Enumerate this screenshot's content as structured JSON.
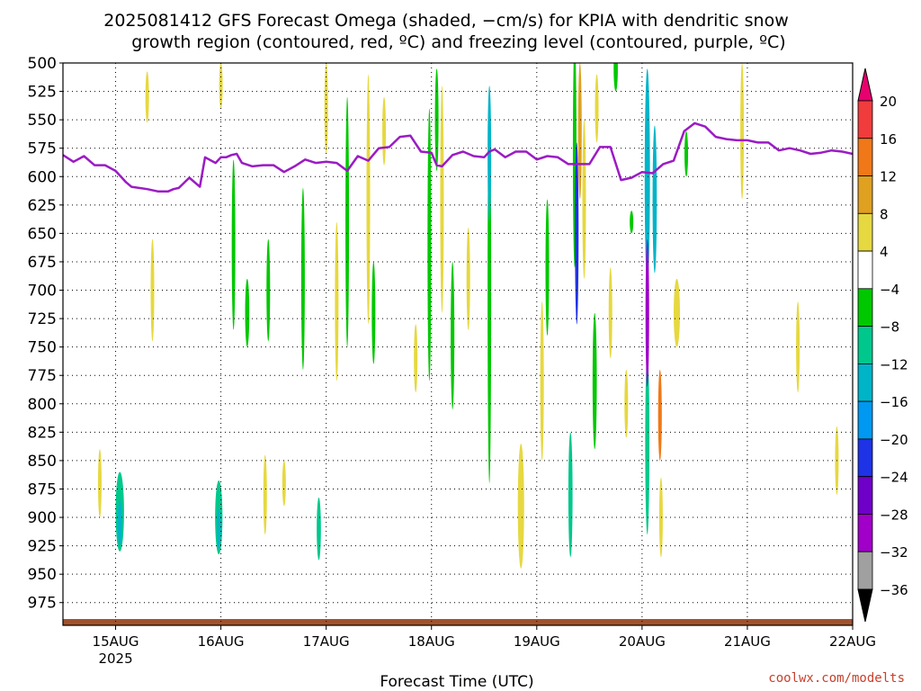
{
  "chart_data": {
    "type": "heatmap",
    "title_line1": "2025081412 GFS Forecast Omega (shaded, −cm/s) for KPIA with dendritic snow",
    "title_line2": "growth region (contoured, red, ºC) and freezing level (contoured, purple, ºC)",
    "xlabel": "Forecast Time (UTC)",
    "ylabel": "",
    "x_ticks": [
      "15AUG",
      "16AUG",
      "17AUG",
      "18AUG",
      "19AUG",
      "20AUG",
      "21AUG",
      "22AUG"
    ],
    "x_year": "2025",
    "y_ticks": [
      500,
      525,
      550,
      575,
      600,
      625,
      650,
      675,
      700,
      725,
      750,
      775,
      800,
      825,
      850,
      875,
      900,
      925,
      950,
      975
    ],
    "xlim_days": [
      14.5,
      22.0
    ],
    "ylim_hpa": [
      500,
      995
    ],
    "grid": "dotted",
    "colorbar": {
      "labels": [
        "20",
        "16",
        "12",
        "8",
        "4",
        "−4",
        "−8",
        "−12",
        "−16",
        "−20",
        "−24",
        "−28",
        "−32",
        "−36"
      ],
      "colors": [
        "#e8006e",
        "#f03c3c",
        "#f07818",
        "#e0a020",
        "#e6d840",
        "#ffffff",
        "#00c800",
        "#00c88c",
        "#00b4c8",
        "#0098f0",
        "#1e32e6",
        "#6e00c8",
        "#a000c8",
        "#a0a0a0",
        "#000000"
      ]
    },
    "colors": {
      "freezing_level": "#9b1bc4",
      "ground": "#a0522d"
    },
    "freezing_level": {
      "x_day": [
        14.5,
        14.6,
        14.7,
        14.8,
        14.9,
        15.0,
        15.1,
        15.15,
        15.3,
        15.4,
        15.5,
        15.55,
        15.6,
        15.7,
        15.8,
        15.85,
        15.95,
        16.0,
        16.05,
        16.1,
        16.15,
        16.2,
        16.3,
        16.4,
        16.5,
        16.6,
        16.7,
        16.8,
        16.9,
        17.0,
        17.1,
        17.2,
        17.3,
        17.4,
        17.5,
        17.6,
        17.7,
        17.8,
        17.9,
        18.0,
        18.05,
        18.1,
        18.2,
        18.3,
        18.4,
        18.5,
        18.55,
        18.6,
        18.7,
        18.8,
        18.9,
        19.0,
        19.1,
        19.2,
        19.3,
        19.4,
        19.5,
        19.6,
        19.7,
        19.8,
        19.9,
        20.0,
        20.1,
        20.2,
        20.3,
        20.4,
        20.5,
        20.6,
        20.7,
        20.8,
        20.9,
        21.0,
        21.1,
        21.2,
        21.3,
        21.4,
        21.5,
        21.6,
        21.7,
        21.8,
        21.9,
        22.0
      ],
      "p_hpa": [
        581,
        587,
        582,
        590,
        590,
        595,
        605,
        609,
        611,
        613,
        613,
        611,
        610,
        601,
        609,
        583,
        588,
        583,
        583,
        581,
        580,
        588,
        591,
        590,
        590,
        596,
        591,
        585,
        588,
        587,
        588,
        595,
        582,
        586,
        575,
        574,
        565,
        564,
        578,
        579,
        590,
        591,
        581,
        578,
        582,
        583,
        578,
        576,
        583,
        578,
        578,
        585,
        582,
        583,
        589,
        589,
        589,
        574,
        574,
        603,
        601,
        596,
        597,
        589,
        586,
        560,
        553,
        556,
        565,
        567,
        568,
        568,
        570,
        570,
        577,
        575,
        577,
        580,
        579,
        577,
        578,
        580
      ]
    },
    "omega_blobs": [
      {
        "x": 15.04,
        "y": 895,
        "w": 0.08,
        "h": 70,
        "v": -9
      },
      {
        "x": 15.04,
        "y": 905,
        "w": 0.04,
        "h": 40,
        "v": -13
      },
      {
        "x": 15.98,
        "y": 900,
        "w": 0.07,
        "h": 65,
        "v": -9
      },
      {
        "x": 15.98,
        "y": 910,
        "w": 0.035,
        "h": 35,
        "v": -14
      },
      {
        "x": 16.12,
        "y": 660,
        "w": 0.03,
        "h": 150,
        "v": -6
      },
      {
        "x": 16.25,
        "y": 720,
        "w": 0.04,
        "h": 60,
        "v": -6
      },
      {
        "x": 16.45,
        "y": 700,
        "w": 0.03,
        "h": 90,
        "v": -6
      },
      {
        "x": 16.78,
        "y": 690,
        "w": 0.02,
        "h": 160,
        "v": -6
      },
      {
        "x": 16.93,
        "y": 910,
        "w": 0.04,
        "h": 55,
        "v": -8
      },
      {
        "x": 17.2,
        "y": 640,
        "w": 0.03,
        "h": 220,
        "v": -6
      },
      {
        "x": 17.45,
        "y": 720,
        "w": 0.03,
        "h": 90,
        "v": -6
      },
      {
        "x": 17.98,
        "y": 660,
        "w": 0.035,
        "h": 240,
        "v": -6
      },
      {
        "x": 18.05,
        "y": 550,
        "w": 0.03,
        "h": 90,
        "v": -6
      },
      {
        "x": 18.2,
        "y": 740,
        "w": 0.035,
        "h": 130,
        "v": -6
      },
      {
        "x": 18.55,
        "y": 700,
        "w": 0.025,
        "h": 340,
        "v": -7
      },
      {
        "x": 18.55,
        "y": 580,
        "w": 0.012,
        "h": 120,
        "v": -14
      },
      {
        "x": 19.1,
        "y": 680,
        "w": 0.03,
        "h": 120,
        "v": -6
      },
      {
        "x": 19.32,
        "y": 880,
        "w": 0.04,
        "h": 110,
        "v": -9
      },
      {
        "x": 19.36,
        "y": 580,
        "w": 0.025,
        "h": 200,
        "v": -7
      },
      {
        "x": 19.38,
        "y": 650,
        "w": 0.012,
        "h": 160,
        "v": -23
      },
      {
        "x": 19.41,
        "y": 560,
        "w": 0.012,
        "h": 120,
        "v": 10
      },
      {
        "x": 19.45,
        "y": 620,
        "w": 0.03,
        "h": 140,
        "v": 6
      },
      {
        "x": 19.55,
        "y": 780,
        "w": 0.04,
        "h": 120,
        "v": -6
      },
      {
        "x": 19.75,
        "y": 505,
        "w": 0.04,
        "h": 40,
        "v": -6
      },
      {
        "x": 19.9,
        "y": 640,
        "w": 0.02,
        "h": 20,
        "v": -6
      },
      {
        "x": 20.05,
        "y": 600,
        "w": 0.05,
        "h": 190,
        "v": -14
      },
      {
        "x": 20.05,
        "y": 835,
        "w": 0.04,
        "h": 160,
        "v": -8
      },
      {
        "x": 20.05,
        "y": 720,
        "w": 0.025,
        "h": 130,
        "v": -29
      },
      {
        "x": 20.12,
        "y": 620,
        "w": 0.04,
        "h": 130,
        "v": -14
      },
      {
        "x": 20.17,
        "y": 810,
        "w": 0.035,
        "h": 80,
        "v": 13
      },
      {
        "x": 20.18,
        "y": 900,
        "w": 0.02,
        "h": 70,
        "v": 6
      },
      {
        "x": 20.33,
        "y": 720,
        "w": 0.06,
        "h": 60,
        "v": 6
      },
      {
        "x": 20.42,
        "y": 580,
        "w": 0.02,
        "h": 40,
        "v": -6
      },
      {
        "x": 20.95,
        "y": 560,
        "w": 0.03,
        "h": 120,
        "v": 6
      },
      {
        "x": 21.48,
        "y": 750,
        "w": 0.02,
        "h": 80,
        "v": 6
      },
      {
        "x": 21.85,
        "y": 850,
        "w": 0.02,
        "h": 60,
        "v": 6
      },
      {
        "x": 14.85,
        "y": 870,
        "w": 0.012,
        "h": 60,
        "v": 6
      },
      {
        "x": 15.35,
        "y": 700,
        "w": 0.012,
        "h": 90,
        "v": 6
      },
      {
        "x": 15.3,
        "y": 530,
        "w": 0.015,
        "h": 45,
        "v": 6
      },
      {
        "x": 16.0,
        "y": 520,
        "w": 0.015,
        "h": 40,
        "v": 6
      },
      {
        "x": 16.42,
        "y": 880,
        "w": 0.03,
        "h": 70,
        "v": 6
      },
      {
        "x": 16.6,
        "y": 870,
        "w": 0.015,
        "h": 40,
        "v": 6
      },
      {
        "x": 17.0,
        "y": 540,
        "w": 0.02,
        "h": 80,
        "v": 6
      },
      {
        "x": 17.1,
        "y": 710,
        "w": 0.015,
        "h": 140,
        "v": 6
      },
      {
        "x": 17.4,
        "y": 620,
        "w": 0.03,
        "h": 220,
        "v": 6
      },
      {
        "x": 17.55,
        "y": 560,
        "w": 0.02,
        "h": 60,
        "v": 6
      },
      {
        "x": 17.85,
        "y": 760,
        "w": 0.015,
        "h": 60,
        "v": 6
      },
      {
        "x": 18.1,
        "y": 620,
        "w": 0.015,
        "h": 200,
        "v": 6
      },
      {
        "x": 18.35,
        "y": 690,
        "w": 0.015,
        "h": 90,
        "v": 6
      },
      {
        "x": 18.85,
        "y": 890,
        "w": 0.06,
        "h": 110,
        "v": 6
      },
      {
        "x": 19.05,
        "y": 780,
        "w": 0.02,
        "h": 140,
        "v": 6
      },
      {
        "x": 19.57,
        "y": 540,
        "w": 0.02,
        "h": 60,
        "v": 6
      },
      {
        "x": 19.7,
        "y": 720,
        "w": 0.015,
        "h": 80,
        "v": 6
      },
      {
        "x": 19.85,
        "y": 800,
        "w": 0.015,
        "h": 60,
        "v": 6
      }
    ]
  }
}
